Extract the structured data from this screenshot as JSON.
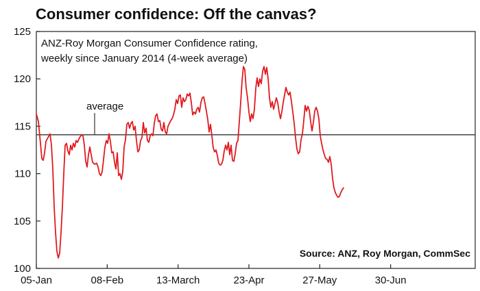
{
  "chart_data": {
    "type": "line",
    "title": "Consumer confidence: Off the canvas?",
    "subtitle_lines": [
      "ANZ-Roy Morgan Consumer Confidence rating,",
      "weekly since January 2014 (4-week average)"
    ],
    "source": "Source: ANZ, Roy Morgan, CommSec",
    "average_label": "average",
    "average_value": 114.1,
    "ylim": [
      100,
      125
    ],
    "y_ticks": [
      "100",
      "105",
      "110",
      "115",
      "120",
      "125"
    ],
    "x_tick_labels": [
      "05-Jan",
      "08-Feb",
      "13-March",
      "23-Apr",
      "27-May",
      "30-Jun"
    ],
    "x_span": [
      0,
      640
    ],
    "x_tick_positions": [
      0,
      103.3,
      206.7,
      310,
      413.3,
      516.7
    ],
    "grid": false,
    "series": [
      {
        "color": "#e0191e",
        "points": [
          [
            0,
            116.3
          ],
          [
            3,
            115.5
          ],
          [
            6,
            113.2
          ],
          [
            8,
            111.6
          ],
          [
            10,
            111.4
          ],
          [
            12,
            112.2
          ],
          [
            14,
            113.4
          ],
          [
            17,
            113.8
          ],
          [
            20,
            114.2
          ],
          [
            22,
            113.0
          ],
          [
            24,
            110.5
          ],
          [
            26,
            106.5
          ],
          [
            28,
            103.8
          ],
          [
            30,
            101.8
          ],
          [
            32,
            101.1
          ],
          [
            34,
            101.6
          ],
          [
            36,
            103.8
          ],
          [
            38,
            106.5
          ],
          [
            40,
            110.0
          ],
          [
            42,
            113.0
          ],
          [
            44,
            113.2
          ],
          [
            46,
            112.4
          ],
          [
            48,
            112.0
          ],
          [
            50,
            113.0
          ],
          [
            52,
            112.5
          ],
          [
            54,
            113.2
          ],
          [
            56,
            112.8
          ],
          [
            58,
            113.5
          ],
          [
            60,
            113.3
          ],
          [
            63,
            113.8
          ],
          [
            66,
            114.1
          ],
          [
            68,
            114.0
          ],
          [
            70,
            113.0
          ],
          [
            72,
            111.3
          ],
          [
            74,
            110.7
          ],
          [
            76,
            112.0
          ],
          [
            78,
            112.8
          ],
          [
            80,
            112.0
          ],
          [
            82,
            111.2
          ],
          [
            85,
            111.0
          ],
          [
            88,
            111.1
          ],
          [
            90,
            110.7
          ],
          [
            92,
            110.0
          ],
          [
            94,
            109.8
          ],
          [
            96,
            110.2
          ],
          [
            98,
            111.5
          ],
          [
            100,
            112.8
          ],
          [
            102,
            113.5
          ],
          [
            104,
            113.2
          ],
          [
            106,
            114.2
          ],
          [
            108,
            113.4
          ],
          [
            110,
            112.2
          ],
          [
            112,
            112.3
          ],
          [
            114,
            111.2
          ],
          [
            116,
            110.5
          ],
          [
            118,
            112.2
          ],
          [
            120,
            109.8
          ],
          [
            122,
            110.0
          ],
          [
            124,
            109.4
          ],
          [
            126,
            110.2
          ],
          [
            128,
            112.8
          ],
          [
            130,
            113.6
          ],
          [
            132,
            115.2
          ],
          [
            134,
            115.4
          ],
          [
            136,
            114.8
          ],
          [
            138,
            115.3
          ],
          [
            140,
            115.5
          ],
          [
            142,
            114.6
          ],
          [
            144,
            115.0
          ],
          [
            146,
            113.5
          ],
          [
            148,
            112.3
          ],
          [
            150,
            112.5
          ],
          [
            152,
            113.5
          ],
          [
            154,
            113.8
          ],
          [
            156,
            115.4
          ],
          [
            158,
            114.3
          ],
          [
            160,
            114.8
          ],
          [
            162,
            113.5
          ],
          [
            164,
            113.3
          ],
          [
            166,
            114.0
          ],
          [
            168,
            114.2
          ],
          [
            170,
            114.0
          ],
          [
            172,
            115.3
          ],
          [
            174,
            116.1
          ],
          [
            176,
            116.3
          ],
          [
            178,
            115.5
          ],
          [
            180,
            115.6
          ],
          [
            182,
            114.7
          ],
          [
            184,
            114.5
          ],
          [
            186,
            115.4
          ],
          [
            188,
            114.4
          ],
          [
            190,
            114.2
          ],
          [
            192,
            115.0
          ],
          [
            194,
            115.3
          ],
          [
            196,
            115.6
          ],
          [
            198,
            115.8
          ],
          [
            200,
            116.2
          ],
          [
            202,
            116.8
          ],
          [
            204,
            117.8
          ],
          [
            206,
            117.4
          ],
          [
            208,
            118.2
          ],
          [
            210,
            118.3
          ],
          [
            212,
            117.0
          ],
          [
            214,
            118.0
          ],
          [
            216,
            117.6
          ],
          [
            218,
            117.8
          ],
          [
            220,
            118.4
          ],
          [
            222,
            118.2
          ],
          [
            224,
            118.5
          ],
          [
            226,
            117.5
          ],
          [
            228,
            116.2
          ],
          [
            230,
            116.5
          ],
          [
            232,
            116.3
          ],
          [
            234,
            116.8
          ],
          [
            236,
            117.0
          ],
          [
            238,
            116.5
          ],
          [
            240,
            117.5
          ],
          [
            242,
            118.0
          ],
          [
            244,
            118.1
          ],
          [
            246,
            117.4
          ],
          [
            248,
            116.6
          ],
          [
            250,
            115.7
          ],
          [
            252,
            114.4
          ],
          [
            254,
            115.2
          ],
          [
            256,
            114.0
          ],
          [
            258,
            112.7
          ],
          [
            260,
            112.3
          ],
          [
            262,
            112.5
          ],
          [
            264,
            111.9
          ],
          [
            266,
            111.1
          ],
          [
            268,
            110.9
          ],
          [
            270,
            111.0
          ],
          [
            272,
            111.4
          ],
          [
            274,
            112.4
          ],
          [
            276,
            113.0
          ],
          [
            278,
            112.5
          ],
          [
            280,
            113.3
          ],
          [
            282,
            112.0
          ],
          [
            284,
            113.0
          ],
          [
            286,
            111.4
          ],
          [
            288,
            111.3
          ],
          [
            290,
            112.1
          ],
          [
            292,
            113.2
          ],
          [
            294,
            113.5
          ],
          [
            296,
            115.5
          ],
          [
            298,
            117.5
          ],
          [
            300,
            119.8
          ],
          [
            302,
            121.3
          ],
          [
            304,
            121.0
          ],
          [
            306,
            119.0
          ],
          [
            308,
            118.0
          ],
          [
            310,
            116.5
          ],
          [
            312,
            115.5
          ],
          [
            314,
            116.3
          ],
          [
            316,
            115.8
          ],
          [
            318,
            116.8
          ],
          [
            320,
            119.0
          ],
          [
            322,
            120.1
          ],
          [
            324,
            119.2
          ],
          [
            326,
            120.0
          ],
          [
            328,
            119.5
          ],
          [
            330,
            120.8
          ],
          [
            332,
            121.3
          ],
          [
            334,
            120.5
          ],
          [
            336,
            121.2
          ],
          [
            338,
            120.0
          ],
          [
            340,
            118.0
          ],
          [
            342,
            117.0
          ],
          [
            344,
            117.6
          ],
          [
            346,
            116.8
          ],
          [
            348,
            117.4
          ],
          [
            350,
            118.0
          ],
          [
            352,
            117.5
          ],
          [
            354,
            116.5
          ],
          [
            356,
            115.8
          ],
          [
            358,
            116.5
          ],
          [
            360,
            117.5
          ],
          [
            362,
            118.3
          ],
          [
            364,
            119.1
          ],
          [
            366,
            118.6
          ],
          [
            368,
            118.3
          ],
          [
            370,
            118.6
          ],
          [
            372,
            117.6
          ],
          [
            374,
            116.5
          ],
          [
            376,
            115.3
          ],
          [
            378,
            113.8
          ],
          [
            380,
            112.6
          ],
          [
            382,
            112.1
          ],
          [
            384,
            112.3
          ],
          [
            386,
            113.6
          ],
          [
            388,
            114.2
          ],
          [
            390,
            115.6
          ],
          [
            392,
            117.2
          ],
          [
            394,
            116.6
          ],
          [
            396,
            117.1
          ],
          [
            398,
            116.7
          ],
          [
            400,
            115.5
          ],
          [
            402,
            114.5
          ],
          [
            404,
            115.4
          ],
          [
            406,
            116.6
          ],
          [
            408,
            117.0
          ],
          [
            410,
            116.6
          ],
          [
            412,
            115.8
          ],
          [
            414,
            114.0
          ],
          [
            416,
            113.2
          ],
          [
            418,
            112.5
          ],
          [
            420,
            112.0
          ],
          [
            422,
            111.6
          ],
          [
            424,
            111.5
          ],
          [
            426,
            111.2
          ],
          [
            428,
            111.8
          ],
          [
            430,
            111.0
          ],
          [
            432,
            109.5
          ],
          [
            434,
            108.5
          ],
          [
            436,
            108.0
          ],
          [
            438,
            107.7
          ],
          [
            440,
            107.5
          ],
          [
            442,
            107.6
          ],
          [
            444,
            108.0
          ],
          [
            446,
            108.3
          ],
          [
            448,
            108.5
          ]
        ]
      }
    ]
  }
}
